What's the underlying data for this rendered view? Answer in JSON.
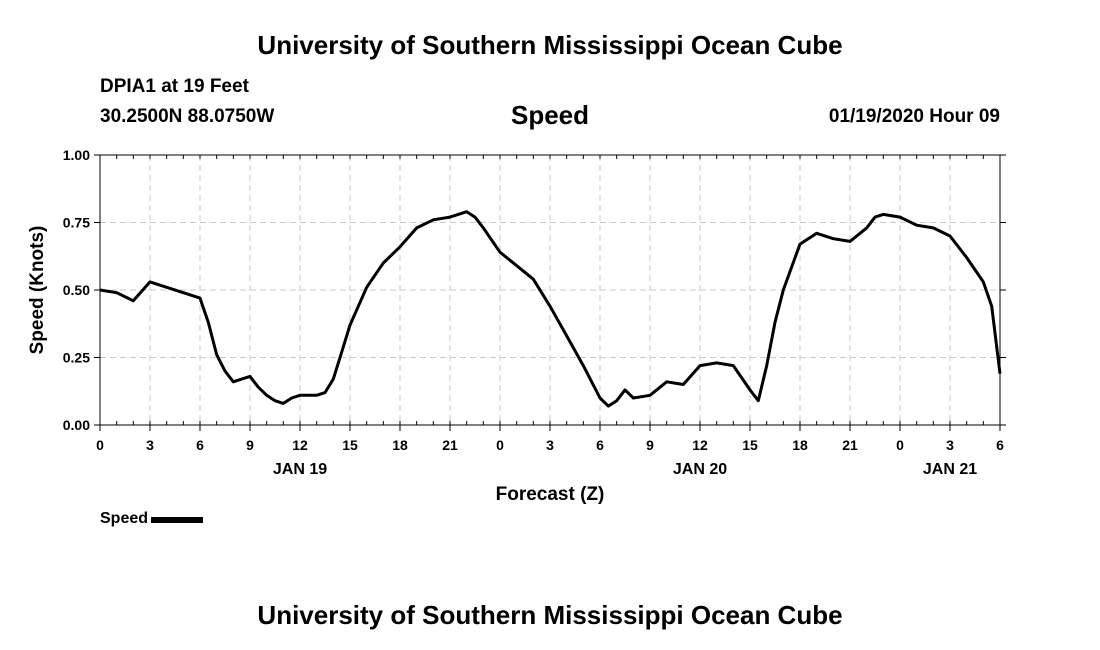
{
  "header": {
    "top_title": "University of Southern Mississippi Ocean Cube",
    "station": "DPIA1 at 19 Feet",
    "coordinates": "30.2500N 88.0750W",
    "datetime": "01/19/2020 Hour 09",
    "bottom_title": "University of Southern Mississippi Ocean Cube"
  },
  "chart_data": {
    "type": "line",
    "title": "Speed",
    "xlabel": "Forecast (Z)",
    "ylabel": "Speed (Knots)",
    "ylim": [
      0,
      1
    ],
    "xlim": [
      0,
      54
    ],
    "grid": true,
    "legend_position": "bottom-left",
    "y_ticks": [
      "0.00",
      "0.25",
      "0.50",
      "0.75",
      "1.00"
    ],
    "x_ticks": [
      "0",
      "3",
      "6",
      "9",
      "12",
      "15",
      "18",
      "21",
      "0",
      "3",
      "6",
      "9",
      "12",
      "15",
      "18",
      "21",
      "0",
      "3",
      "6"
    ],
    "date_labels": [
      {
        "label": "JAN 19",
        "at": 12
      },
      {
        "label": "JAN 20",
        "at": 36
      },
      {
        "label": "JAN 21",
        "at": 51
      }
    ],
    "series": [
      {
        "name": "Speed",
        "color": "#000000",
        "x": [
          0,
          1,
          2,
          3,
          4,
          5,
          6,
          6.5,
          7,
          7.5,
          8,
          8.5,
          9,
          9.5,
          10,
          10.5,
          11,
          11.5,
          12,
          12.5,
          13,
          13.5,
          14,
          14.5,
          15,
          16,
          17,
          18,
          19,
          20,
          21,
          22,
          22.5,
          23,
          24,
          25,
          26,
          27,
          28,
          29,
          30,
          30.5,
          31,
          31.5,
          32,
          33,
          34,
          35,
          36,
          37,
          38,
          39,
          39.5,
          40,
          40.5,
          41,
          42,
          43,
          44,
          45,
          46,
          46.5,
          47,
          48,
          49,
          50,
          51,
          52,
          53,
          53.5,
          54
        ],
        "y": [
          0.5,
          0.49,
          0.46,
          0.53,
          0.51,
          0.49,
          0.47,
          0.38,
          0.26,
          0.2,
          0.16,
          0.17,
          0.18,
          0.14,
          0.11,
          0.09,
          0.08,
          0.1,
          0.11,
          0.11,
          0.11,
          0.12,
          0.17,
          0.27,
          0.37,
          0.51,
          0.6,
          0.66,
          0.73,
          0.76,
          0.77,
          0.79,
          0.77,
          0.73,
          0.64,
          0.59,
          0.54,
          0.44,
          0.33,
          0.22,
          0.1,
          0.07,
          0.09,
          0.13,
          0.1,
          0.11,
          0.16,
          0.15,
          0.22,
          0.23,
          0.22,
          0.13,
          0.09,
          0.22,
          0.38,
          0.5,
          0.67,
          0.71,
          0.69,
          0.68,
          0.73,
          0.77,
          0.78,
          0.77,
          0.74,
          0.73,
          0.7,
          0.62,
          0.53,
          0.44,
          0.19
        ]
      }
    ]
  }
}
